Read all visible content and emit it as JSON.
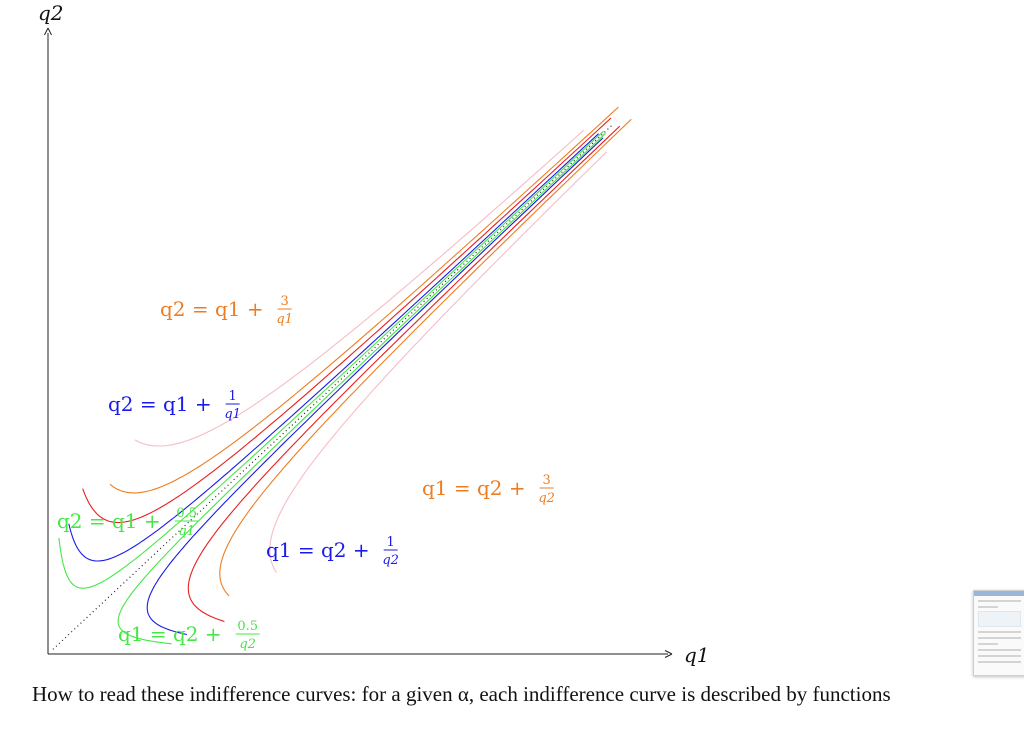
{
  "chart_data": {
    "type": "line",
    "xlabel": "q1",
    "ylabel": "q2",
    "xlim": [
      0,
      12
    ],
    "ylim": [
      0,
      13
    ],
    "series": [
      {
        "name": "q2 = q1 + 0.5/q1",
        "color": "#44e844",
        "axis": "x",
        "k": 0.5,
        "x": [
          0.25,
          0.5,
          1.0,
          2.0,
          4.0,
          6.0,
          8.0,
          11.0
        ],
        "y": [
          2.25,
          1.5,
          1.5,
          2.25,
          4.13,
          6.08,
          8.06,
          11.05
        ]
      },
      {
        "name": "q2 = q1 + 1/q1",
        "color": "#1a1aeb",
        "axis": "x",
        "k": 1,
        "x": [
          0.45,
          0.7,
          1.0,
          1.5,
          2.0,
          4.0,
          6.0,
          8.0,
          11.0
        ],
        "y": [
          2.67,
          2.13,
          2.0,
          2.17,
          2.5,
          4.25,
          6.17,
          8.13,
          11.09
        ]
      },
      {
        "name": "q2 = q1 + 3/q1",
        "color": "#ee7d22",
        "axis": "x",
        "k": 3,
        "x": [
          1.25,
          1.5,
          2.0,
          3.0,
          4.0,
          6.0,
          8.0,
          10.5
        ],
        "y": [
          3.65,
          3.5,
          3.5,
          4.0,
          4.75,
          6.5,
          8.38,
          10.79
        ]
      },
      {
        "name": "q1 = q2 + 0.5/q2",
        "color": "#44e844",
        "axis": "y",
        "k": 0.5,
        "y": [
          0.25,
          0.5,
          1.0,
          2.0,
          4.0,
          6.0,
          8.0,
          11.0
        ],
        "x": [
          2.25,
          1.5,
          1.5,
          2.25,
          4.13,
          6.08,
          8.06,
          11.05
        ]
      },
      {
        "name": "q1 = q2 + 1/q2",
        "color": "#1a1aeb",
        "axis": "y",
        "k": 1,
        "y": [
          0.45,
          0.7,
          1.0,
          1.5,
          2.0,
          4.0,
          6.0,
          8.0,
          11.0
        ],
        "x": [
          2.67,
          2.13,
          2.0,
          2.17,
          2.5,
          4.25,
          6.17,
          8.13,
          11.09
        ]
      },
      {
        "name": "q1 = q2 + 3/q2",
        "color": "#ee7d22",
        "axis": "y",
        "k": 3,
        "y": [
          1.25,
          1.5,
          2.0,
          3.0,
          4.0,
          6.0,
          8.0,
          10.5
        ],
        "x": [
          3.65,
          3.5,
          3.5,
          4.0,
          4.75,
          6.5,
          8.38,
          10.79
        ]
      },
      {
        "color": "#e81e1e",
        "axis": "x",
        "k": 2
      },
      {
        "color": "#e81e1e",
        "axis": "y",
        "k": 2
      },
      {
        "color": "#f7bcc4",
        "axis": "x",
        "k": 5
      },
      {
        "color": "#f7bcc4",
        "axis": "y",
        "k": 5
      },
      {
        "color": "#222222",
        "axis": "diag",
        "dotted": true
      }
    ],
    "labels": [
      {
        "lhs": "q2 = q1 +",
        "num": "0.5",
        "den": "q1",
        "color": "#44e844"
      },
      {
        "lhs": "q2 = q1 +",
        "num": "1",
        "den": "q1",
        "color": "#1a1aeb"
      },
      {
        "lhs": "q2 = q1 +",
        "num": "3",
        "den": "q1",
        "color": "#ee7d22"
      },
      {
        "lhs": "q1 = q2 +",
        "num": "0.5",
        "den": "q2",
        "color": "#44e844"
      },
      {
        "lhs": "q1 = q2 +",
        "num": "1",
        "den": "q2",
        "color": "#1a1aeb"
      },
      {
        "lhs": "q1 = q2 +",
        "num": "3",
        "den": "q2",
        "color": "#ee7d22"
      }
    ]
  },
  "caption": "How to read these indifference curves: for a given α, each indifference curve is described by functions"
}
